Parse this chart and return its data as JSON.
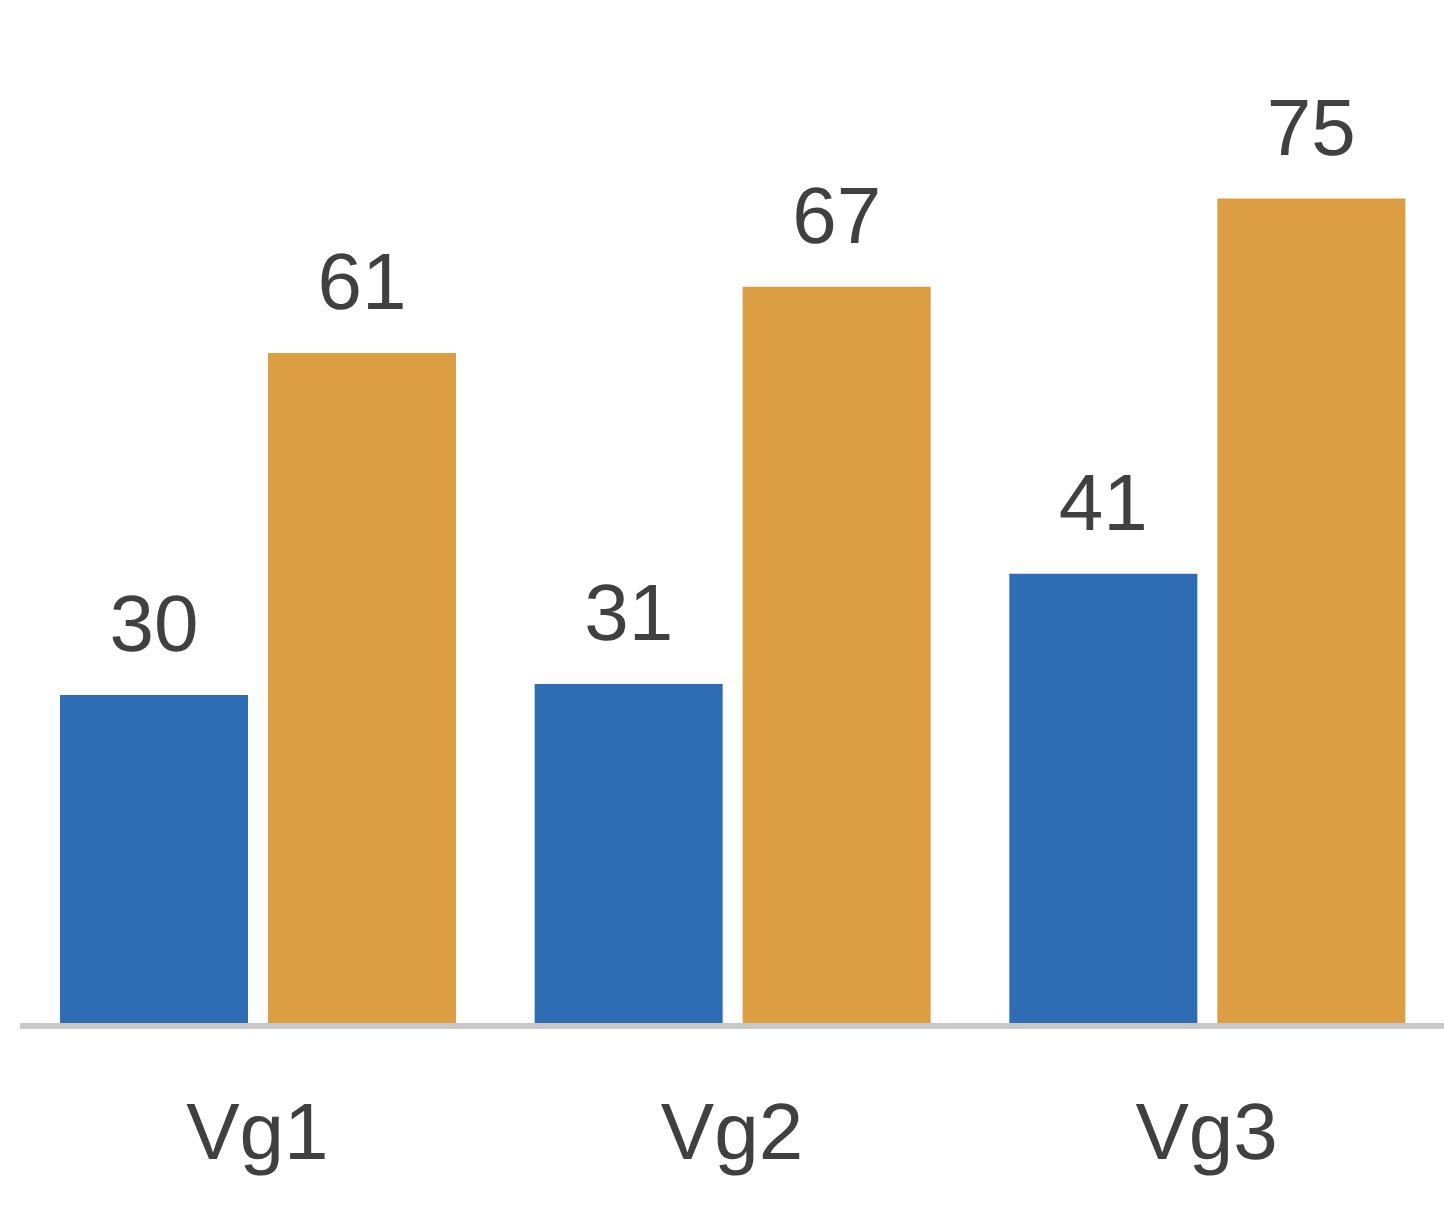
{
  "chart_data": {
    "type": "bar",
    "categories": [
      "Vg1",
      "Vg2",
      "Vg3"
    ],
    "series": [
      {
        "color": "#2e6db4",
        "values": [
          30,
          31,
          41
        ]
      },
      {
        "color": "#dc9e42",
        "values": [
          61,
          67,
          75
        ]
      }
    ],
    "ylim": [
      0,
      93
    ],
    "tick_labels": "x",
    "data_labels": true,
    "grid": false,
    "legend": false
  }
}
